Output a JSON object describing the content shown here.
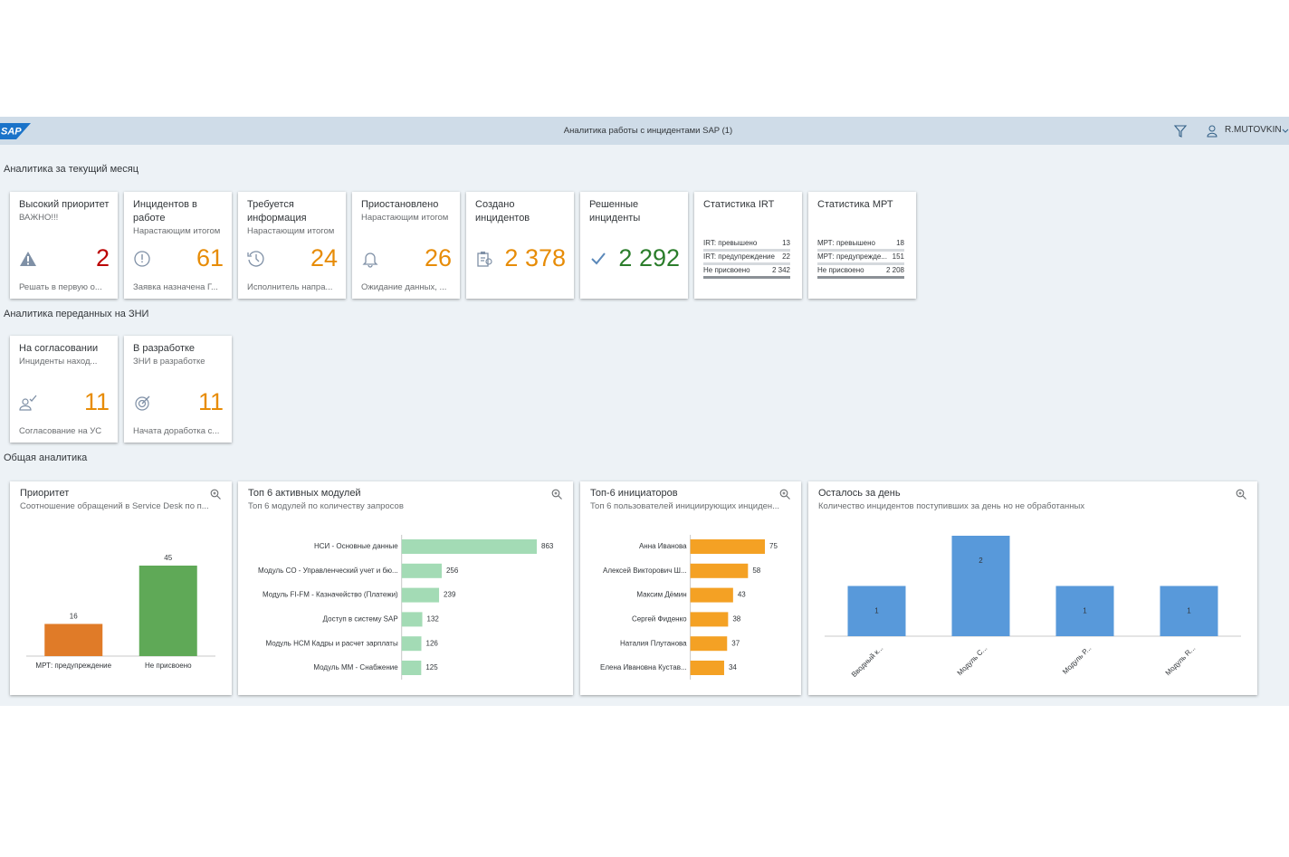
{
  "header": {
    "logo": "SAP",
    "title": "Аналитика работы с инцидентами SAP (1)",
    "user": "R.MUTOVKIN"
  },
  "sections": [
    {
      "title": "Аналитика за текущий месяц",
      "tiles": [
        {
          "title": "Высокий приоритет",
          "subtitle": "ВАЖНО!!!",
          "value": "2",
          "color": "#bb0000",
          "footer": "Решать в первую о..."
        },
        {
          "title": "Инцидентов в работе",
          "subtitle": "Нарастающим итогом",
          "value": "61",
          "color": "#e78c07",
          "footer": "Заявка назначена Г..."
        },
        {
          "title": "Требуется информация",
          "subtitle": "Нарастающим итогом",
          "value": "24",
          "color": "#e78c07",
          "footer": "Исполнитель напра..."
        },
        {
          "title": "Приостановлено",
          "subtitle": "Нарастающим итогом",
          "value": "26",
          "color": "#e78c07",
          "footer": "Ожидание данных, ..."
        },
        {
          "title": "Создано инцидентов",
          "value": "2 378",
          "color": "#e78c07"
        },
        {
          "title": "Решенные инциденты",
          "value": "2 292",
          "color": "#2b7d2b"
        },
        {
          "title": "Статистика IRT",
          "rows": [
            [
              "IRT: превышено",
              "13"
            ],
            [
              "IRT: предупреждение",
              "22"
            ],
            [
              "Не присвоено",
              "2 342"
            ]
          ]
        },
        {
          "title": "Статистика МРТ",
          "rows": [
            [
              "МРТ: превышено",
              "18"
            ],
            [
              "МРТ: предупрежде...",
              "151"
            ],
            [
              "Не присвоено",
              "2 208"
            ]
          ]
        }
      ]
    },
    {
      "title": "Аналитика переданных на ЗНИ",
      "tiles": [
        {
          "title": "На согласовании",
          "subtitle": "Инциденты наход...",
          "value": "11",
          "color": "#e78c07",
          "footer": "Согласование на УС"
        },
        {
          "title": "В разработке",
          "subtitle": "ЗНИ в разработке",
          "value": "11",
          "color": "#e78c07",
          "footer": "Начата доработка с..."
        }
      ]
    },
    {
      "title": "Общая аналитика",
      "cards": [
        {
          "title": "Приоритет",
          "subtitle": "Соотношение обращений в Service Desk по п...",
          "chart": {
            "type": "bar",
            "categories": [
              "МРТ: предупреждение",
              "Не присвоено"
            ],
            "values": [
              16,
              45
            ],
            "colors": [
              "#e07b28",
              "#5fa957"
            ]
          }
        },
        {
          "title": "Топ 6 активных модулей",
          "subtitle": "Топ 6 модулей по количеству запросов",
          "chart": {
            "type": "bar",
            "horizontal": true,
            "categories": [
              "НСИ - Основные данные",
              "Модуль CO - Управленческий учет и бю...",
              "Модуль FI-FM - Казначейство (Платежи)",
              "Доступ в систему SAP",
              "Модуль HCM Кадры и расчет зарплаты",
              "Модуль MM - Снабжение"
            ],
            "values": [
              863,
              256,
              239,
              132,
              126,
              125
            ],
            "color": "#a3dbb5"
          }
        },
        {
          "title": "Топ-6 инициаторов",
          "subtitle": "Топ 6 пользователей инициирующих инциден...",
          "chart": {
            "type": "bar",
            "horizontal": true,
            "categories": [
              "Анна Иванова",
              "Алексей Викторович Ш...",
              "Максим Дёмин",
              "Сергей Фиденко",
              "Наталия Плутанова",
              "Елена Ивановна Кустав..."
            ],
            "values": [
              75,
              58,
              43,
              38,
              37,
              34
            ],
            "color": "#f4a124"
          }
        },
        {
          "title": "Осталось за день",
          "subtitle": "Количество инцидентов поступивших за день но не обработанных",
          "chart": {
            "type": "bar",
            "categories": [
              "Вводный к...",
              "Модуль С...",
              "Модуль Р...",
              "Модуль R..."
            ],
            "values": [
              1,
              2,
              1,
              1
            ],
            "color": "#5899da",
            "value_label_position": "inside",
            "x_label_rotation": -45
          }
        }
      ]
    }
  ]
}
